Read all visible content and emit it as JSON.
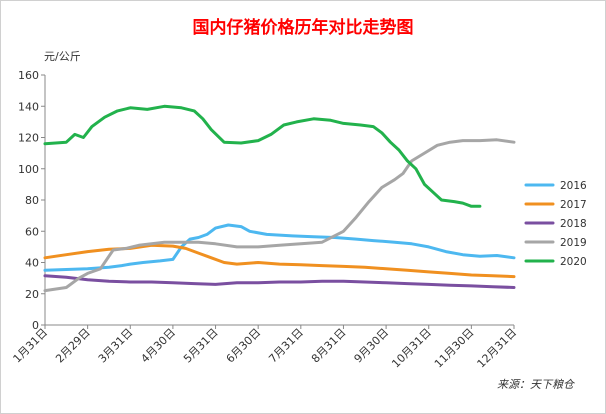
{
  "chart_data": {
    "type": "line",
    "title": "国内仔猪价格历年对比走势图",
    "unit_label": "元/公斤",
    "source": "来源：天下粮仓",
    "ylim": [
      0,
      160
    ],
    "yticks": [
      0,
      20,
      40,
      60,
      80,
      100,
      120,
      140,
      160
    ],
    "xlim": [
      0,
      11
    ],
    "xtick_labels": [
      "1月31日",
      "2月29日",
      "3月31日",
      "4月30日",
      "5月31日",
      "6月30日",
      "7月31日",
      "8月31日",
      "9月30日",
      "10月31日",
      "11月30日",
      "12月31日"
    ],
    "grid": false,
    "legend_position": "right",
    "series": [
      {
        "name": "2016",
        "color": "#4db8f0",
        "points": [
          [
            0,
            35
          ],
          [
            0.5,
            35.5
          ],
          [
            1.0,
            36
          ],
          [
            1.5,
            37
          ],
          [
            1.8,
            38
          ],
          [
            2.0,
            39
          ],
          [
            2.3,
            40
          ],
          [
            2.7,
            41
          ],
          [
            3.0,
            42
          ],
          [
            3.2,
            50
          ],
          [
            3.4,
            55
          ],
          [
            3.6,
            56
          ],
          [
            3.8,
            58
          ],
          [
            4.0,
            62
          ],
          [
            4.3,
            64
          ],
          [
            4.6,
            63
          ],
          [
            4.8,
            60
          ],
          [
            5.2,
            58
          ],
          [
            5.8,
            57
          ],
          [
            6.3,
            56.5
          ],
          [
            6.8,
            56
          ],
          [
            7.3,
            55
          ],
          [
            7.7,
            54
          ],
          [
            8.2,
            53
          ],
          [
            8.6,
            52
          ],
          [
            9.0,
            50
          ],
          [
            9.4,
            47
          ],
          [
            9.8,
            45
          ],
          [
            10.2,
            44
          ],
          [
            10.6,
            44.5
          ],
          [
            11.0,
            43
          ]
        ]
      },
      {
        "name": "2017",
        "color": "#f09020",
        "points": [
          [
            0,
            43
          ],
          [
            0.5,
            45
          ],
          [
            1.0,
            47
          ],
          [
            1.5,
            48.5
          ],
          [
            2.0,
            49
          ],
          [
            2.5,
            51
          ],
          [
            3.0,
            50.5
          ],
          [
            3.3,
            49
          ],
          [
            3.6,
            46
          ],
          [
            3.9,
            43
          ],
          [
            4.2,
            40
          ],
          [
            4.5,
            39
          ],
          [
            5.0,
            40
          ],
          [
            5.5,
            39
          ],
          [
            6.0,
            38.5
          ],
          [
            6.5,
            38
          ],
          [
            7.0,
            37.5
          ],
          [
            7.5,
            37
          ],
          [
            8.0,
            36
          ],
          [
            8.5,
            35
          ],
          [
            9.0,
            34
          ],
          [
            9.5,
            33
          ],
          [
            10.0,
            32
          ],
          [
            10.5,
            31.5
          ],
          [
            11.0,
            31
          ]
        ]
      },
      {
        "name": "2018",
        "color": "#7a4fa0",
        "points": [
          [
            0,
            31.5
          ],
          [
            0.5,
            30.5
          ],
          [
            1.0,
            29
          ],
          [
            1.5,
            28
          ],
          [
            2.0,
            27.5
          ],
          [
            2.5,
            27.5
          ],
          [
            3.0,
            27
          ],
          [
            3.5,
            26.5
          ],
          [
            4.0,
            26
          ],
          [
            4.5,
            27
          ],
          [
            5.0,
            27
          ],
          [
            5.5,
            27.5
          ],
          [
            6.0,
            27.5
          ],
          [
            6.5,
            28
          ],
          [
            7.0,
            28
          ],
          [
            7.5,
            27.5
          ],
          [
            8.0,
            27
          ],
          [
            8.5,
            26.5
          ],
          [
            9.0,
            26
          ],
          [
            9.5,
            25.5
          ],
          [
            10.0,
            25
          ],
          [
            10.5,
            24.5
          ],
          [
            11.0,
            24
          ]
        ]
      },
      {
        "name": "2019",
        "color": "#a6a6a6",
        "points": [
          [
            0,
            22
          ],
          [
            0.5,
            24
          ],
          [
            0.8,
            30
          ],
          [
            1.0,
            33
          ],
          [
            1.3,
            36
          ],
          [
            1.6,
            48
          ],
          [
            1.9,
            49
          ],
          [
            2.2,
            51
          ],
          [
            2.5,
            52
          ],
          [
            2.8,
            53
          ],
          [
            3.2,
            53
          ],
          [
            3.6,
            53
          ],
          [
            4.0,
            52
          ],
          [
            4.5,
            50
          ],
          [
            5.0,
            50
          ],
          [
            5.5,
            51
          ],
          [
            6.0,
            52
          ],
          [
            6.5,
            53
          ],
          [
            7.0,
            60
          ],
          [
            7.3,
            69
          ],
          [
            7.6,
            79
          ],
          [
            7.9,
            88
          ],
          [
            8.2,
            93
          ],
          [
            8.4,
            97
          ],
          [
            8.6,
            105
          ],
          [
            8.9,
            110
          ],
          [
            9.2,
            115
          ],
          [
            9.5,
            117
          ],
          [
            9.8,
            118
          ],
          [
            10.2,
            118
          ],
          [
            10.6,
            118.5
          ],
          [
            11.0,
            117
          ]
        ]
      },
      {
        "name": "2020",
        "color": "#22b24c",
        "points": [
          [
            0,
            116
          ],
          [
            0.5,
            117
          ],
          [
            0.7,
            122
          ],
          [
            0.9,
            120
          ],
          [
            1.1,
            127
          ],
          [
            1.4,
            133
          ],
          [
            1.7,
            137
          ],
          [
            2.0,
            139
          ],
          [
            2.4,
            138
          ],
          [
            2.8,
            140
          ],
          [
            3.2,
            139
          ],
          [
            3.5,
            137
          ],
          [
            3.7,
            132
          ],
          [
            3.9,
            125
          ],
          [
            4.2,
            117
          ],
          [
            4.6,
            116.5
          ],
          [
            5.0,
            118
          ],
          [
            5.3,
            122
          ],
          [
            5.6,
            128
          ],
          [
            5.9,
            130
          ],
          [
            6.3,
            132
          ],
          [
            6.7,
            131
          ],
          [
            7.0,
            129
          ],
          [
            7.4,
            128
          ],
          [
            7.7,
            127
          ],
          [
            7.9,
            123
          ],
          [
            8.1,
            117
          ],
          [
            8.3,
            112
          ],
          [
            8.5,
            105
          ],
          [
            8.7,
            100
          ],
          [
            8.9,
            90
          ],
          [
            9.1,
            85
          ],
          [
            9.3,
            80
          ],
          [
            9.6,
            79
          ],
          [
            9.8,
            78
          ],
          [
            10.0,
            76
          ],
          [
            10.2,
            76
          ]
        ]
      }
    ]
  }
}
